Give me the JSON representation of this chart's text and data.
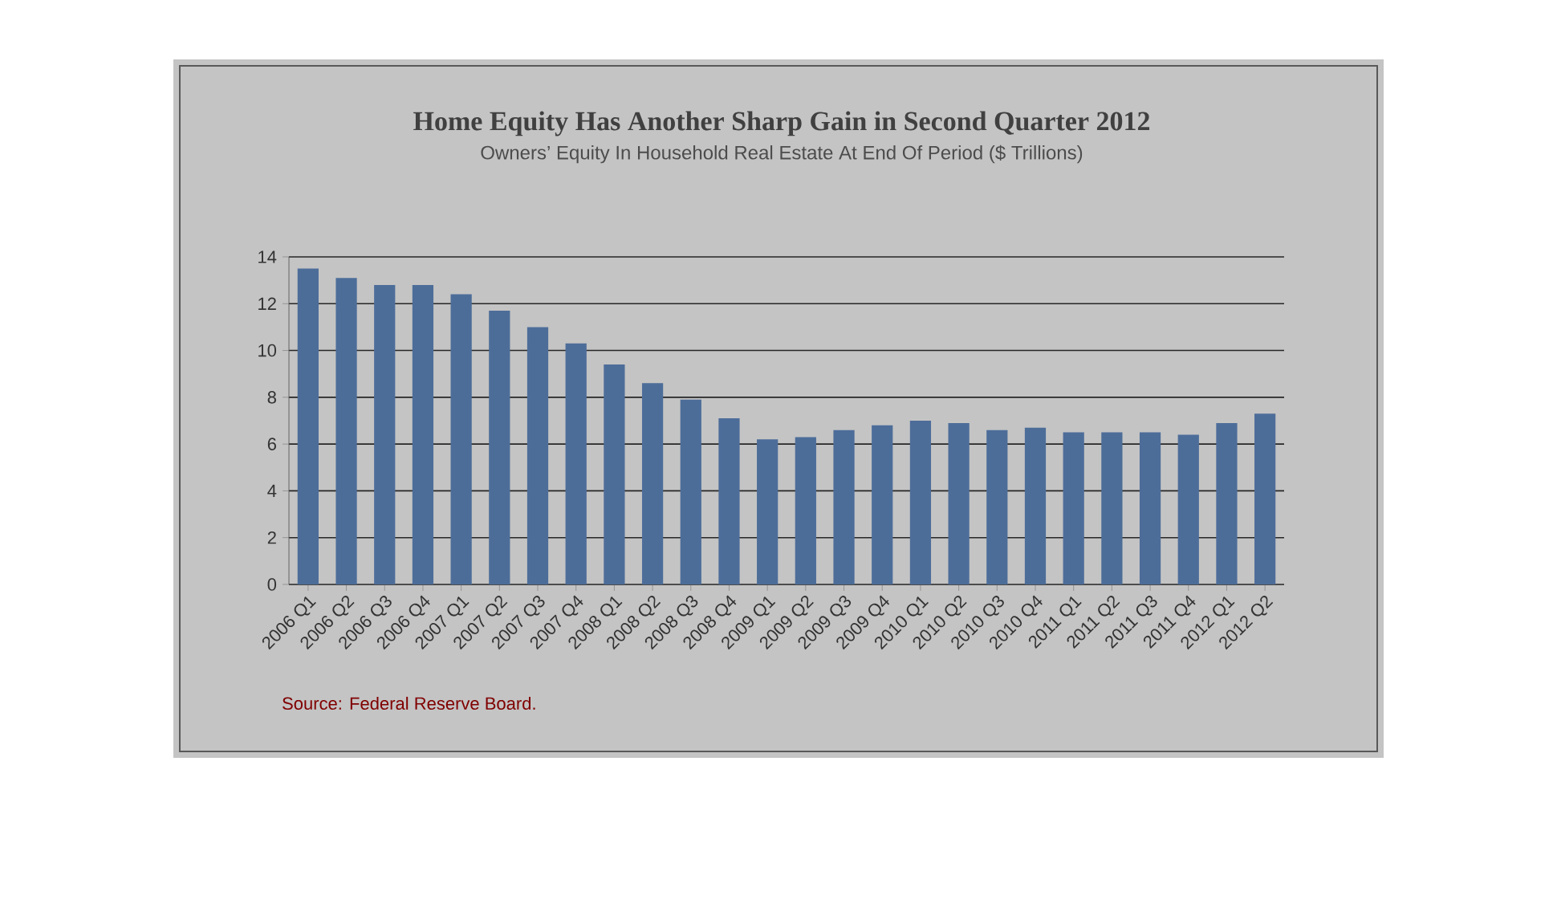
{
  "chart_data": {
    "type": "bar",
    "title": "Home Equity Has Another Sharp Gain in Second Quarter 2012",
    "subtitle": "Owners’ Equity In Household Real Estate At End Of Period ($ Trillions)",
    "categories": [
      "2006 Q1",
      "2006 Q2",
      "2006 Q3",
      "2006 Q4",
      "2007 Q1",
      "2007 Q2",
      "2007 Q3",
      "2007 Q4",
      "2008 Q1",
      "2008 Q2",
      "2008 Q3",
      "2008 Q4",
      "2009 Q1",
      "2009 Q2",
      "2009 Q3",
      "2009 Q4",
      "2010 Q1",
      "2010 Q2",
      "2010 Q3",
      "2010 Q4",
      "2011 Q1",
      "2011 Q2",
      "2011 Q3",
      "2011 Q4",
      "2012 Q1",
      "2012 Q2"
    ],
    "values": [
      13.5,
      13.1,
      12.8,
      12.8,
      12.4,
      11.7,
      11.0,
      10.3,
      9.4,
      8.6,
      7.9,
      7.1,
      6.2,
      6.3,
      6.6,
      6.8,
      7.0,
      6.9,
      6.6,
      6.7,
      6.5,
      6.5,
      6.5,
      6.4,
      6.9,
      7.3
    ],
    "color": "#4d6d99",
    "ylim": [
      0,
      14
    ],
    "yticks": [
      0,
      2,
      4,
      6,
      8,
      10,
      12,
      14
    ],
    "grid": "y",
    "annotations": [
      "Source:  Federal Reserve Board."
    ]
  }
}
